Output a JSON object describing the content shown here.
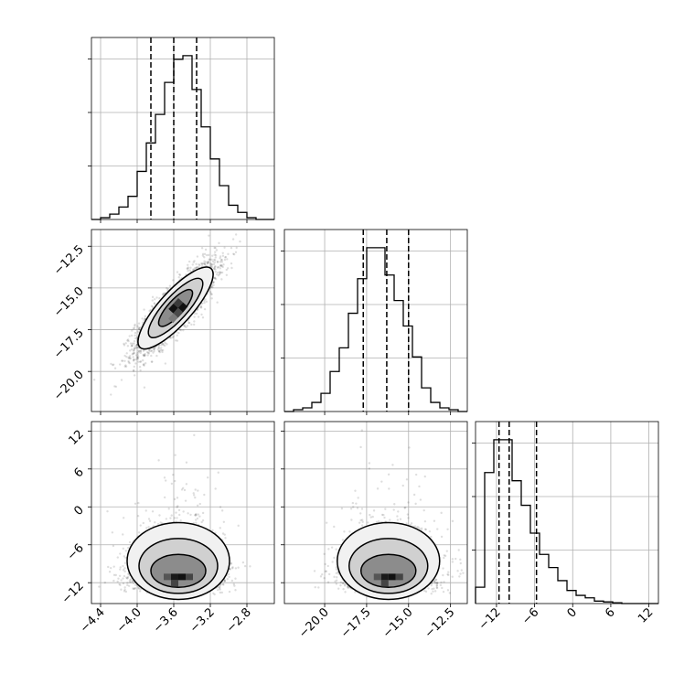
{
  "chart_data": {
    "type": "corner",
    "grid": true,
    "parameters": [
      {
        "ticks": [
          -4.4,
          -4.0,
          -3.6,
          -3.2,
          -2.8
        ],
        "tick_labels": [
          "−4.4",
          "−4.0",
          "−3.6",
          "−3.2",
          "−2.8"
        ],
        "range": [
          -4.5,
          -2.5
        ]
      },
      {
        "ticks": [
          -20.0,
          -17.5,
          -15.0,
          -12.5
        ],
        "tick_labels": [
          "−20.0",
          "−17.5",
          "−15.0",
          "−12.5"
        ],
        "range": [
          -22.4,
          -11.5
        ]
      },
      {
        "ticks": [
          -12,
          -6,
          0,
          6,
          12
        ],
        "tick_labels": [
          "−12",
          "−6",
          "0",
          "6",
          "12"
        ],
        "range": [
          -15.3,
          13.5
        ]
      }
    ],
    "quantiles": [
      [
        -3.85,
        -3.6,
        -3.35
      ],
      [
        -17.7,
        -16.3,
        -15.0
      ],
      [
        -11.6,
        -10.0,
        -5.7
      ]
    ],
    "histograms": [
      {
        "bin_edges": [
          -4.5,
          -4.4,
          -4.3,
          -4.2,
          -4.1,
          -4.0,
          -3.9,
          -3.8,
          -3.7,
          -3.6,
          -3.5,
          -3.4,
          -3.3,
          -3.2,
          -3.1,
          -3.0,
          -2.9,
          -2.8,
          -2.7,
          -2.6,
          -2.5
        ],
        "counts": [
          0,
          0.01,
          0.03,
          0.07,
          0.13,
          0.27,
          0.43,
          0.59,
          0.77,
          0.9,
          0.92,
          0.73,
          0.52,
          0.34,
          0.19,
          0.08,
          0.04,
          0.01,
          0,
          0
        ]
      },
      {
        "bin_edges": [
          -22.4,
          -21.855,
          -21.31,
          -20.765,
          -20.22,
          -19.675,
          -19.13,
          -18.585,
          -18.04,
          -17.495,
          -16.95,
          -16.405,
          -15.86,
          -15.315,
          -14.77,
          -14.225,
          -13.68,
          -13.135,
          -12.59,
          -12.045,
          -11.5
        ],
        "counts": [
          0,
          0.01,
          0.02,
          0.05,
          0.1,
          0.22,
          0.35,
          0.54,
          0.73,
          0.9,
          0.9,
          0.75,
          0.61,
          0.47,
          0.3,
          0.13,
          0.05,
          0.02,
          0.01,
          0
        ]
      },
      {
        "bin_edges": [
          -15.3,
          -13.86,
          -12.42,
          -10.98,
          -9.54,
          -8.1,
          -6.66,
          -5.22,
          -3.78,
          -2.34,
          -0.9,
          0.54,
          1.98,
          3.42,
          4.86,
          6.3,
          7.74,
          9.18,
          10.62,
          12.06,
          13.5
        ],
        "counts": [
          0.1,
          0.8,
          1.0,
          1.0,
          0.75,
          0.6,
          0.43,
          0.3,
          0.22,
          0.14,
          0.08,
          0.05,
          0.035,
          0.015,
          0.01,
          0.005,
          0,
          0,
          0,
          0
        ]
      }
    ],
    "pairs": [
      {
        "x_param": 0,
        "y_param": 1,
        "center": [
          -3.58,
          -16.2
        ],
        "spread": [
          0.22,
          1.35
        ],
        "correlation": 0.85
      },
      {
        "x_param": 0,
        "y_param": 2,
        "center": [
          -3.55,
          -10.0
        ],
        "spread": [
          0.24,
          3.6
        ],
        "correlation": 0.0
      },
      {
        "x_param": 1,
        "y_param": 2,
        "center": [
          -16.2,
          -10.0
        ],
        "spread": [
          1.35,
          3.6
        ],
        "correlation": 0.0
      }
    ]
  }
}
